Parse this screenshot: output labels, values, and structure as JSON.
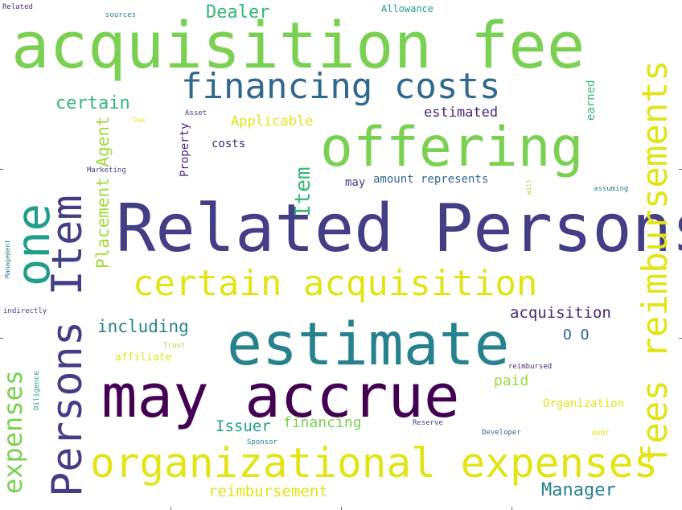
{
  "palette": {
    "light_green": "#7ad151",
    "lime": "#a0da39",
    "yellow": "#e2e418",
    "teal": "#1f9e89",
    "cyan": "#26828e",
    "blue": "#31688e",
    "indigo": "#433e85",
    "purple": "#482878",
    "dark_purple": "#440154",
    "green": "#35b779"
  },
  "words": {
    "acquisition_fee": "acquisition fee",
    "related_persons": "Related Persons",
    "offering": "offering",
    "fees_reimbursements": "fees reimbursements",
    "estimate": "estimate",
    "may_accrue": "may accrue",
    "organizational_expenses": "organizational expenses",
    "certain_acquisition": "certain acquisition",
    "persons_item": "Persons Item",
    "one": "one",
    "financing_costs": "financing costs",
    "expenses": "expenses",
    "item": "Item",
    "placement_agent": "Placement Agent",
    "dealer": "Dealer",
    "certain": "certain",
    "applicable": "Applicable",
    "estimated": "estimated",
    "earned": "earned",
    "including": "including",
    "acquisition": "acquisition",
    "o_o": "O O",
    "manager": "Manager",
    "reimbursement": "reimbursement",
    "organization": "Organization",
    "issuer": "Issuer",
    "financing": "financing",
    "paid": "paid",
    "may": "may",
    "amount_represents": "amount represents",
    "costs": "costs",
    "property": "Property",
    "asset": "Asset",
    "due": "Due",
    "marketing": "Marketing",
    "allowance": "Allowance",
    "sources": "sources",
    "related": "Related",
    "will": "will",
    "assuming": "assuming",
    "management": "Management",
    "indirectly": "indirectly",
    "trust": "Trust",
    "affiliate": "affiliate",
    "diligence": "Diligence",
    "reimbursed": "reimbursed",
    "developer": "Developer",
    "debt": "debt",
    "reserve": "Reserve",
    "sponsor": "Sponsor"
  }
}
